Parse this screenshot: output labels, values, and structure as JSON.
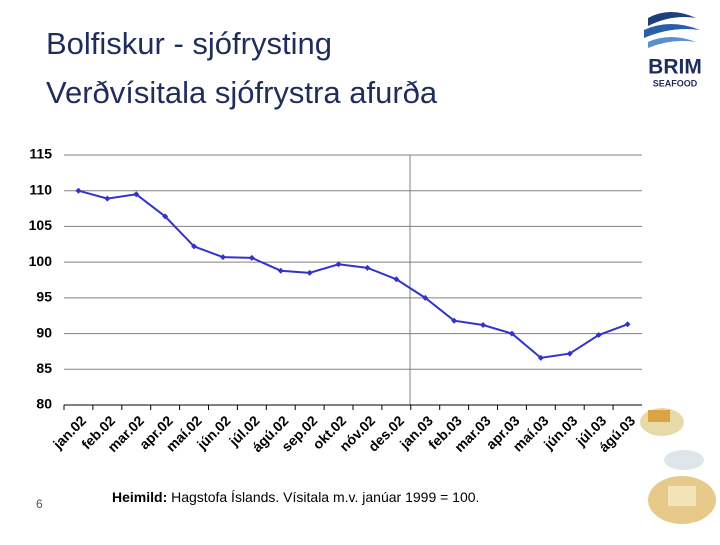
{
  "chart_data": {
    "type": "line",
    "title": "Bolfiskur - sjófrysting",
    "subtitle": "Verðvísitala sjófrystra afurða",
    "categories": [
      "jan.02",
      "feb.02",
      "mar.02",
      "apr.02",
      "maí.02",
      "jún.02",
      "júl.02",
      "ágú.02",
      "sep.02",
      "okt.02",
      "nóv.02",
      "des.02",
      "jan.03",
      "feb.03",
      "mar.03",
      "apr.03",
      "maí.03",
      "jún.03",
      "júl.03",
      "ágú.03"
    ],
    "values": [
      110.0,
      108.9,
      109.5,
      106.4,
      102.2,
      100.7,
      100.6,
      98.8,
      98.5,
      99.7,
      99.2,
      97.6,
      95.0,
      91.8,
      91.2,
      90.0,
      86.6,
      87.2,
      89.8,
      91.3
    ],
    "color": "#3333cc",
    "ylim": [
      80,
      115
    ],
    "yticks": [
      80,
      85,
      90,
      95,
      100,
      105,
      110,
      115
    ],
    "grid": true
  },
  "footer": {
    "page_number": "6",
    "source_label": "Heimild:",
    "source_text": "Hagstofa Íslands. Vísitala m.v. janúar 1999 = 100."
  },
  "logo": {
    "name": "BRIM",
    "tagline": "SEAFOOD"
  }
}
